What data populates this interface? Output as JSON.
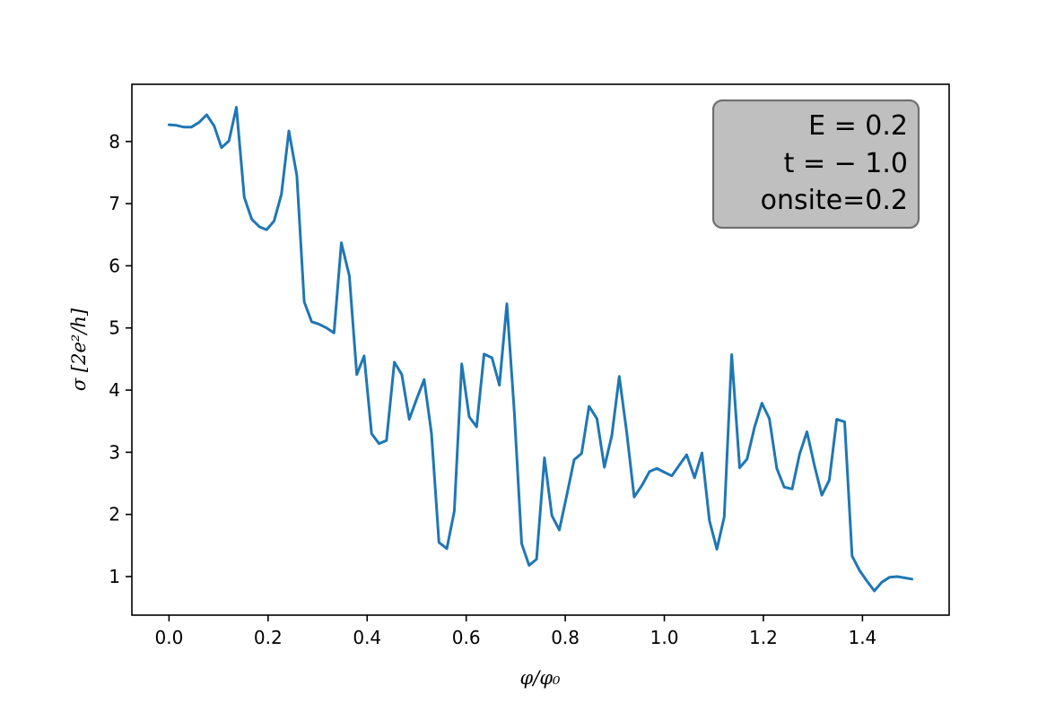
{
  "chart_data": {
    "type": "line",
    "xlabel": "φ/φ₀",
    "ylabel": "σ [2e²/h]",
    "xlim": [
      -0.075,
      1.575
    ],
    "ylim": [
      0.38,
      8.92
    ],
    "xticks": [
      "0.0",
      "0.2",
      "0.4",
      "0.6",
      "0.8",
      "1.0",
      "1.2",
      "1.4"
    ],
    "yticks": [
      "1",
      "2",
      "3",
      "4",
      "5",
      "6",
      "7",
      "8"
    ],
    "grid": false,
    "line_color": "#1f77b4",
    "annotation": {
      "lines": [
        "E = 0.2",
        "t = − 1.0",
        "onsite=0.2"
      ],
      "position": "top-right",
      "background": "#bfbfbf",
      "border": "#707070"
    },
    "series": [
      {
        "x": [
          0.0,
          0.015,
          0.03,
          0.045,
          0.061,
          0.076,
          0.091,
          0.106,
          0.121,
          0.136,
          0.152,
          0.167,
          0.182,
          0.197,
          0.212,
          0.227,
          0.242,
          0.258,
          0.273,
          0.288,
          0.303,
          0.318,
          0.333,
          0.348,
          0.364,
          0.379,
          0.394,
          0.409,
          0.424,
          0.439,
          0.455,
          0.47,
          0.485,
          0.5,
          0.515,
          0.53,
          0.545,
          0.561,
          0.576,
          0.591,
          0.606,
          0.621,
          0.636,
          0.652,
          0.667,
          0.682,
          0.697,
          0.712,
          0.727,
          0.742,
          0.758,
          0.773,
          0.788,
          0.803,
          0.818,
          0.833,
          0.848,
          0.864,
          0.879,
          0.894,
          0.909,
          0.924,
          0.939,
          0.955,
          0.97,
          0.985,
          1.0,
          1.015,
          1.03,
          1.045,
          1.061,
          1.076,
          1.091,
          1.106,
          1.121,
          1.136,
          1.152,
          1.167,
          1.182,
          1.197,
          1.212,
          1.227,
          1.242,
          1.258,
          1.273,
          1.288,
          1.303,
          1.318,
          1.333,
          1.348,
          1.364,
          1.379,
          1.394,
          1.409,
          1.424,
          1.439,
          1.455,
          1.47,
          1.485,
          1.5
        ],
        "y": [
          8.27,
          8.26,
          8.23,
          8.23,
          8.31,
          8.43,
          8.25,
          7.9,
          8.01,
          8.55,
          7.1,
          6.75,
          6.63,
          6.58,
          6.72,
          7.15,
          8.17,
          7.45,
          5.42,
          5.1,
          5.06,
          5.0,
          4.92,
          6.37,
          5.84,
          4.25,
          4.55,
          3.3,
          3.14,
          3.19,
          4.45,
          4.25,
          3.53,
          3.86,
          4.17,
          3.3,
          1.55,
          1.45,
          2.05,
          4.42,
          3.57,
          3.41,
          4.58,
          4.52,
          4.08,
          5.39,
          3.67,
          1.53,
          1.18,
          1.28,
          2.91,
          1.98,
          1.75,
          2.31,
          2.88,
          2.98,
          3.74,
          3.54,
          2.76,
          3.27,
          4.22,
          3.32,
          2.28,
          2.47,
          2.69,
          2.74,
          2.68,
          2.62,
          2.79,
          2.96,
          2.59,
          2.99,
          1.9,
          1.44,
          1.96,
          4.57,
          2.75,
          2.89,
          3.4,
          3.79,
          3.54,
          2.74,
          2.44,
          2.41,
          2.97,
          3.33,
          2.79,
          2.31,
          2.55,
          3.53,
          3.49,
          1.33,
          1.1,
          0.93,
          0.77,
          0.91,
          0.99,
          1.0,
          0.98,
          0.96
        ]
      }
    ]
  }
}
